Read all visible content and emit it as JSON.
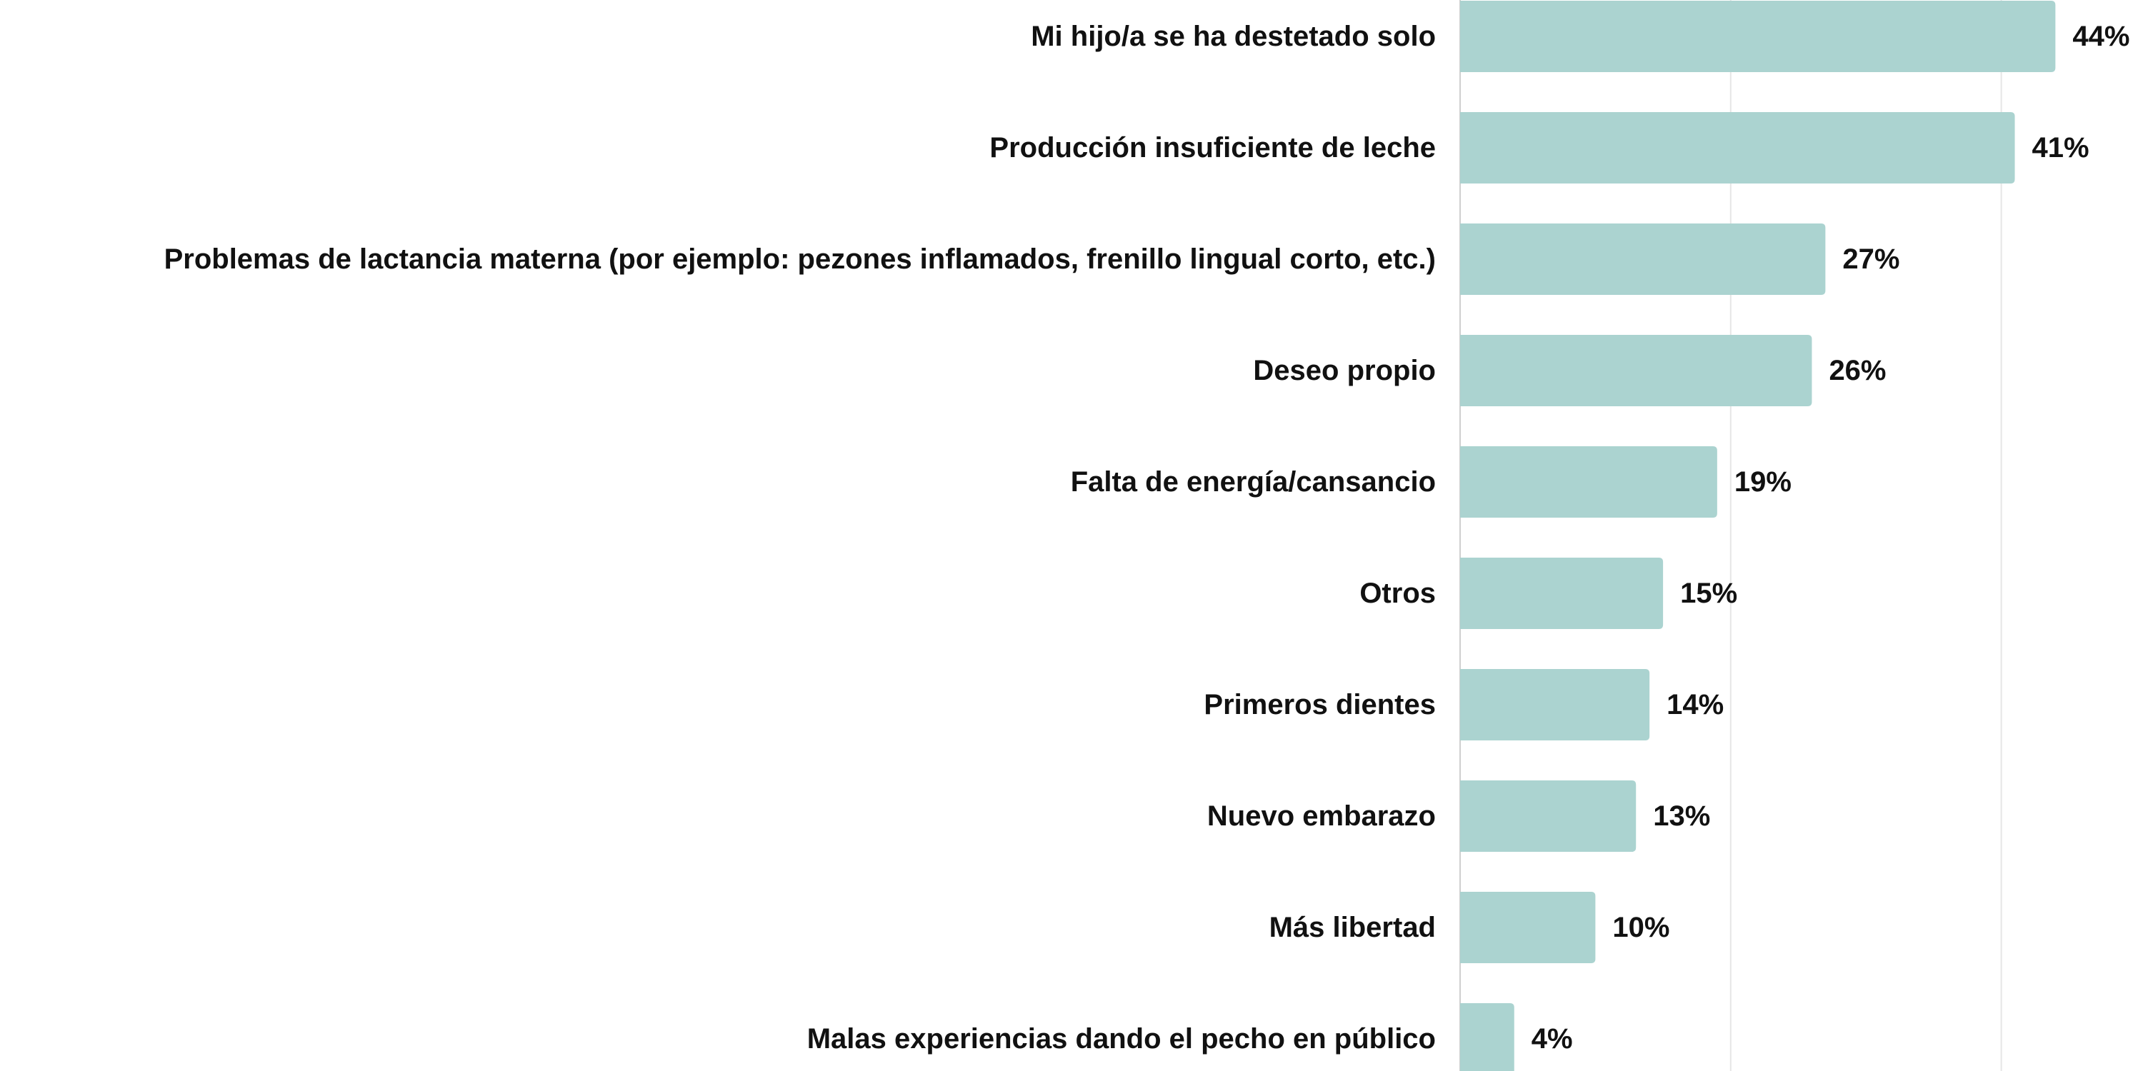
{
  "chart_data": {
    "type": "bar",
    "orientation": "horizontal",
    "categories": [
      "Mi hijo/a se ha destetado solo",
      "Producción insuficiente de leche",
      "Problemas de lactancia materna (por ejemplo: pezones inflamados, frenillo lingual corto, etc.)",
      "Deseo propio",
      "Falta de energía/cansancio",
      "Otros",
      "Primeros dientes",
      "Nuevo embarazo",
      "Más libertad",
      "Malas experiencias dando el pecho en público"
    ],
    "values": [
      44,
      41,
      27,
      26,
      19,
      15,
      14,
      13,
      10,
      4
    ],
    "value_labels": [
      "44%",
      "41%",
      "27%",
      "26%",
      "19%",
      "15%",
      "14%",
      "13%",
      "10%",
      "4%"
    ],
    "unit": "%",
    "xlim": [
      0,
      50
    ],
    "gridlines": [
      20,
      40
    ],
    "grid": true,
    "bar_color": "#abd3d0",
    "grid_color": "#e6e6e6",
    "axis_color": "#cfcfcf",
    "text_color": "#111111"
  }
}
